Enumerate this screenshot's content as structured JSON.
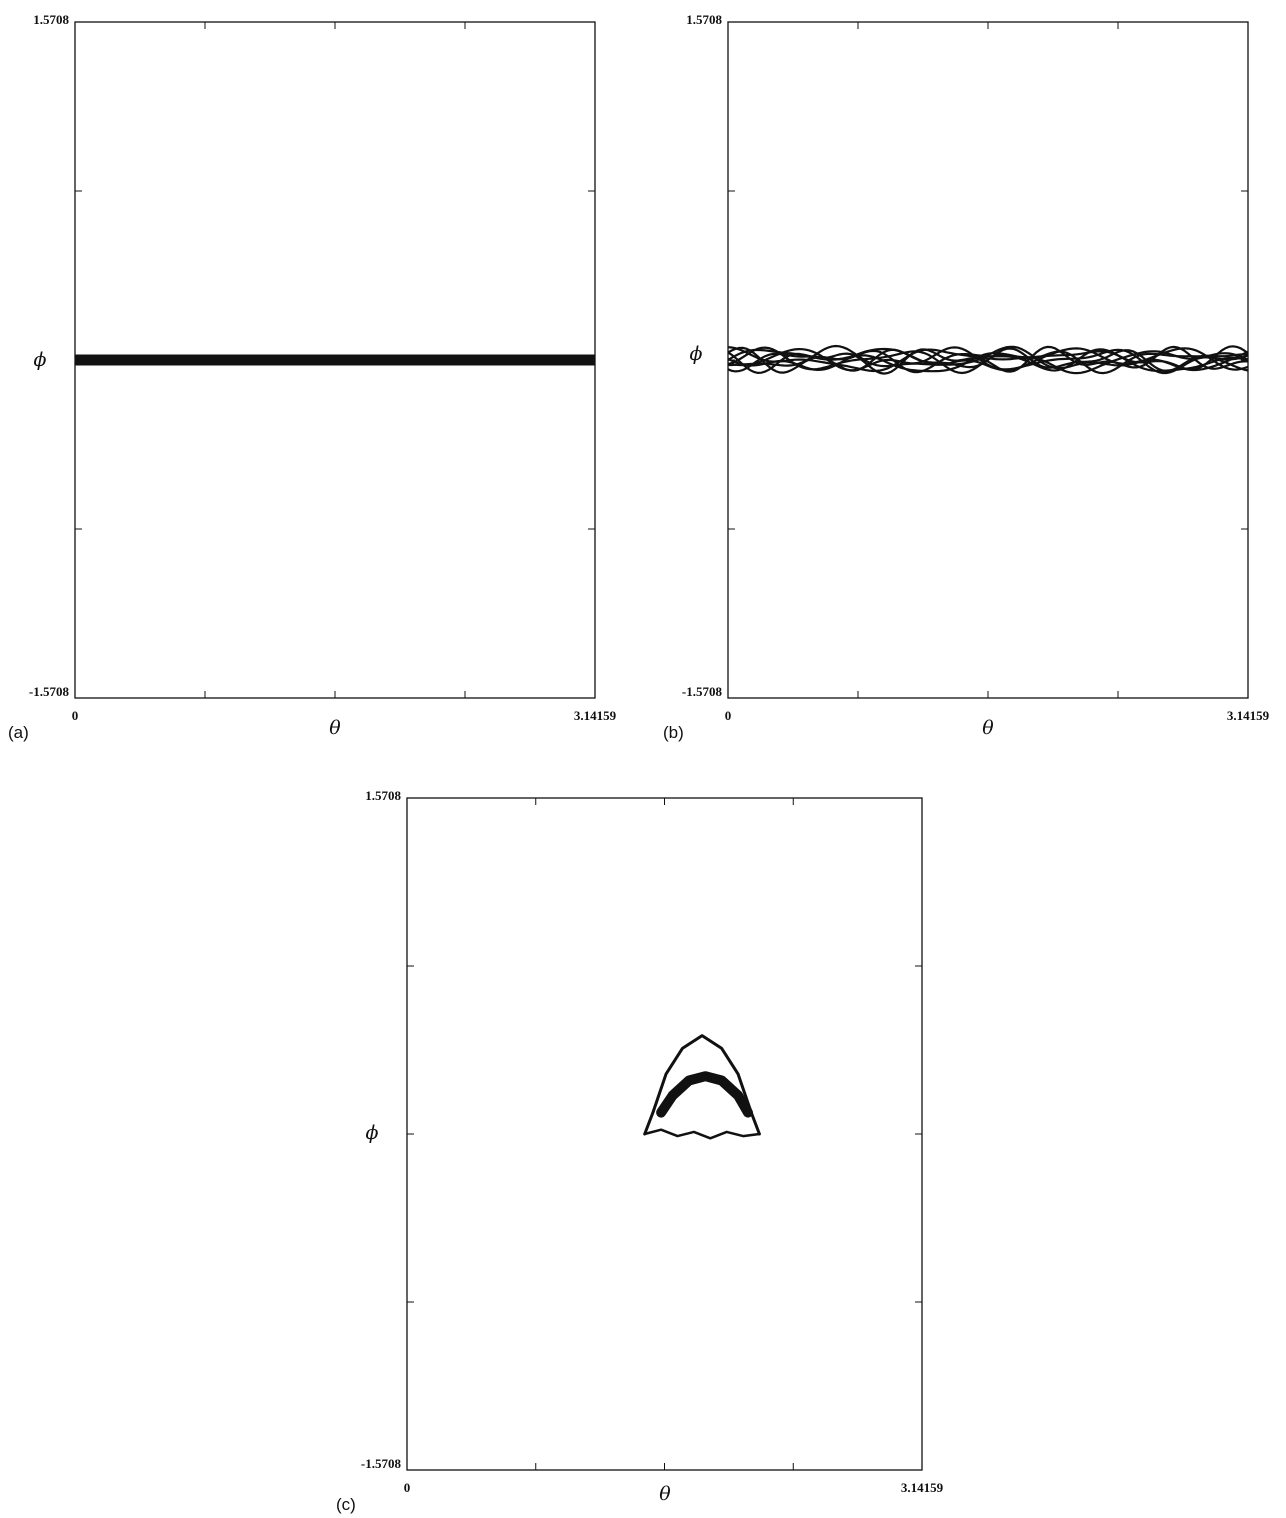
{
  "chart_data": [
    {
      "type": "line",
      "panel_label": "(a)",
      "xlabel": "θ",
      "ylabel": "ϕ",
      "xlim": [
        0,
        3.14159
      ],
      "ylim": [
        -1.5708,
        1.5708
      ],
      "x_tick_labels": [
        "0",
        "3.14159"
      ],
      "y_tick_labels": [
        "1.5708",
        "-1.5708"
      ],
      "grid": false,
      "description": "thick horizontal band at phi = 0 spanning all theta",
      "series": [
        {
          "x": [
            0,
            3.14159
          ],
          "y": [
            0,
            0
          ]
        }
      ]
    },
    {
      "type": "line",
      "panel_label": "(b)",
      "xlabel": "θ",
      "ylabel": "ϕ",
      "xlim": [
        0,
        3.14159
      ],
      "ylim": [
        -1.5708,
        1.5708
      ],
      "x_tick_labels": [
        "0",
        "3.14159"
      ],
      "y_tick_labels": [
        "1.5708",
        "-1.5708"
      ],
      "grid": false,
      "band_center": 0.0,
      "band_halfwidth": 0.065,
      "series": []
    },
    {
      "type": "line",
      "panel_label": "(c)",
      "xlabel": "θ",
      "ylabel": "ϕ",
      "xlim": [
        0,
        3.14159
      ],
      "ylim": [
        -1.5708,
        1.5708
      ],
      "x_tick_labels": [
        "0",
        "3.14159"
      ],
      "y_tick_labels": [
        "1.5708",
        "-1.5708"
      ],
      "grid": false,
      "series": [
        {
          "x": [
            1.45,
            1.5,
            1.58,
            1.68,
            1.8,
            1.92,
            2.02,
            2.1,
            2.15
          ],
          "y": [
            0.0,
            0.1,
            0.28,
            0.4,
            0.46,
            0.4,
            0.28,
            0.1,
            0.0
          ]
        },
        {
          "x": [
            1.45,
            1.55,
            1.65,
            1.75,
            1.85,
            1.95,
            2.05,
            2.15
          ],
          "y": [
            0.0,
            0.02,
            -0.01,
            0.01,
            -0.02,
            0.01,
            -0.01,
            0.0
          ]
        },
        {
          "x": [
            1.55,
            1.62,
            1.72,
            1.82,
            1.92,
            2.02,
            2.08
          ],
          "y": [
            0.1,
            0.18,
            0.25,
            0.27,
            0.25,
            0.18,
            0.1
          ]
        }
      ]
    }
  ]
}
